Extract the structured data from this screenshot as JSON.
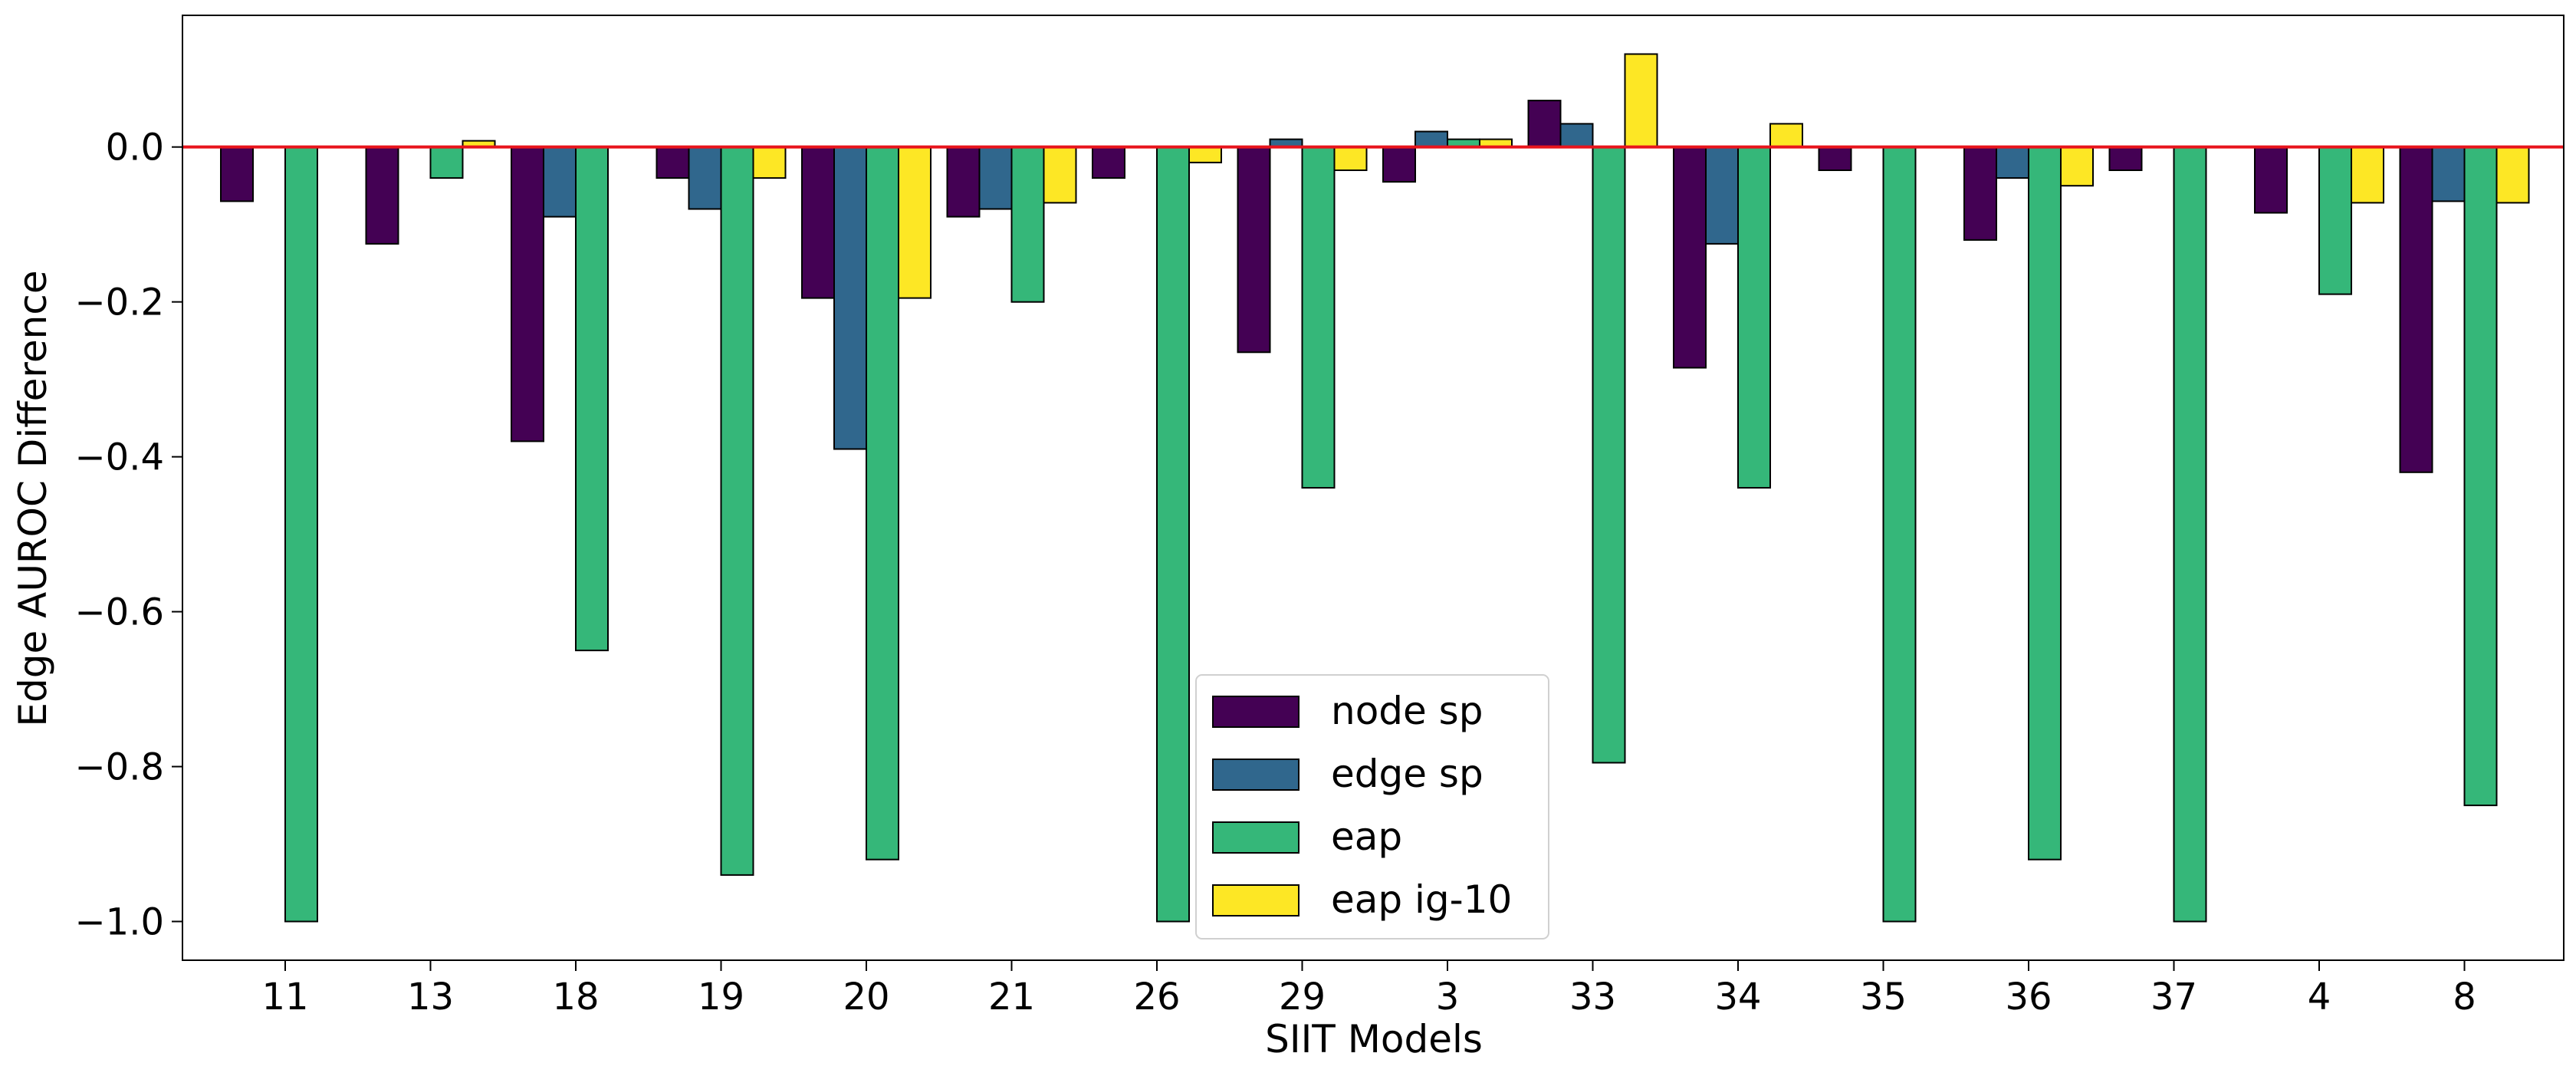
{
  "chart_data": {
    "type": "bar",
    "title": "",
    "xlabel": "SIIT Models",
    "ylabel": "Edge AUROC Difference",
    "ylim": [
      -1.05,
      0.17
    ],
    "yticks": [
      -1.0,
      -0.8,
      -0.6,
      -0.4,
      -0.2,
      0.0
    ],
    "ytick_labels": [
      "−1.0",
      "−0.8",
      "−0.6",
      "−0.4",
      "−0.2",
      "0.0"
    ],
    "grid": false,
    "legend_position": "lower-center",
    "reference_line": {
      "y": 0.0,
      "color": "#e8141c"
    },
    "categories": [
      "11",
      "13",
      "18",
      "19",
      "20",
      "21",
      "26",
      "29",
      "3",
      "33",
      "34",
      "35",
      "36",
      "37",
      "4",
      "8"
    ],
    "series": [
      {
        "name": "node sp",
        "color": "#440154",
        "values": [
          -0.07,
          -0.125,
          -0.38,
          -0.04,
          -0.195,
          -0.09,
          -0.04,
          -0.265,
          -0.045,
          0.06,
          -0.285,
          -0.03,
          -0.12,
          -0.03,
          -0.085,
          -0.42
        ]
      },
      {
        "name": "edge sp",
        "color": "#30678d",
        "values": [
          0,
          0,
          -0.09,
          -0.08,
          -0.39,
          -0.08,
          0,
          0.01,
          0.02,
          0.03,
          -0.125,
          0,
          -0.04,
          0,
          0,
          -0.07
        ]
      },
      {
        "name": "eap",
        "color": "#35b779",
        "values": [
          -1.0,
          -0.04,
          -0.65,
          -0.94,
          -0.92,
          -0.2,
          -1.0,
          -0.44,
          0.01,
          -0.795,
          -0.44,
          -1.0,
          -0.92,
          -1.0,
          -0.19,
          -0.85
        ]
      },
      {
        "name": "eap ig-10",
        "color": "#fde725",
        "values": [
          0,
          0.008,
          0,
          -0.04,
          -0.195,
          -0.072,
          -0.02,
          -0.03,
          0.01,
          0.12,
          0.03,
          0,
          -0.05,
          0,
          -0.072,
          -0.072
        ]
      }
    ]
  }
}
